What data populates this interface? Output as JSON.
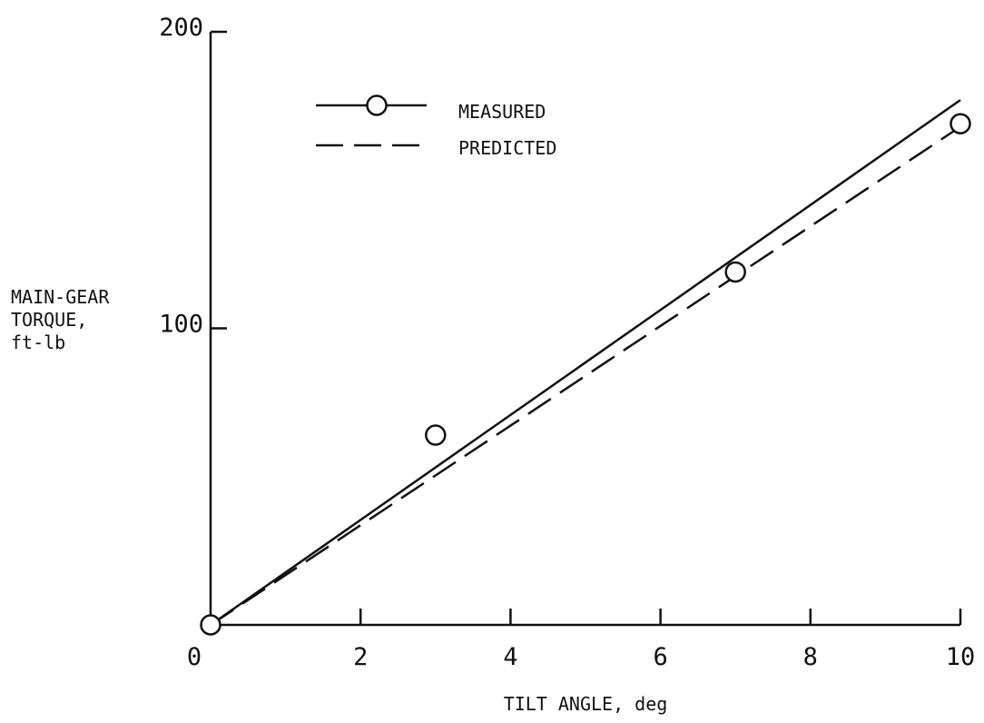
{
  "chart_data": {
    "type": "line",
    "xlabel": "TILT ANGLE, deg",
    "ylabel_lines": [
      "MAIN-GEAR",
      "TORQUE,",
      "ft-lb"
    ],
    "xlim": [
      0,
      10
    ],
    "ylim": [
      0,
      200
    ],
    "x_ticks": [
      "0",
      "2",
      "4",
      "6",
      "8",
      "10"
    ],
    "y_ticks": [
      "100",
      "200"
    ],
    "grid": false,
    "legend_placement": "top-left",
    "series": [
      {
        "name": "MEASURED",
        "style": "solid",
        "marker": "circle",
        "fit_line": {
          "x": [
            0,
            10
          ],
          "y": [
            0,
            177
          ]
        },
        "points": {
          "x": [
            0,
            3,
            7,
            10
          ],
          "y": [
            0,
            64,
            119,
            169
          ]
        }
      },
      {
        "name": "PREDICTED",
        "style": "dashed",
        "line": {
          "x": [
            0,
            10
          ],
          "y": [
            0,
            168
          ]
        }
      }
    ]
  }
}
